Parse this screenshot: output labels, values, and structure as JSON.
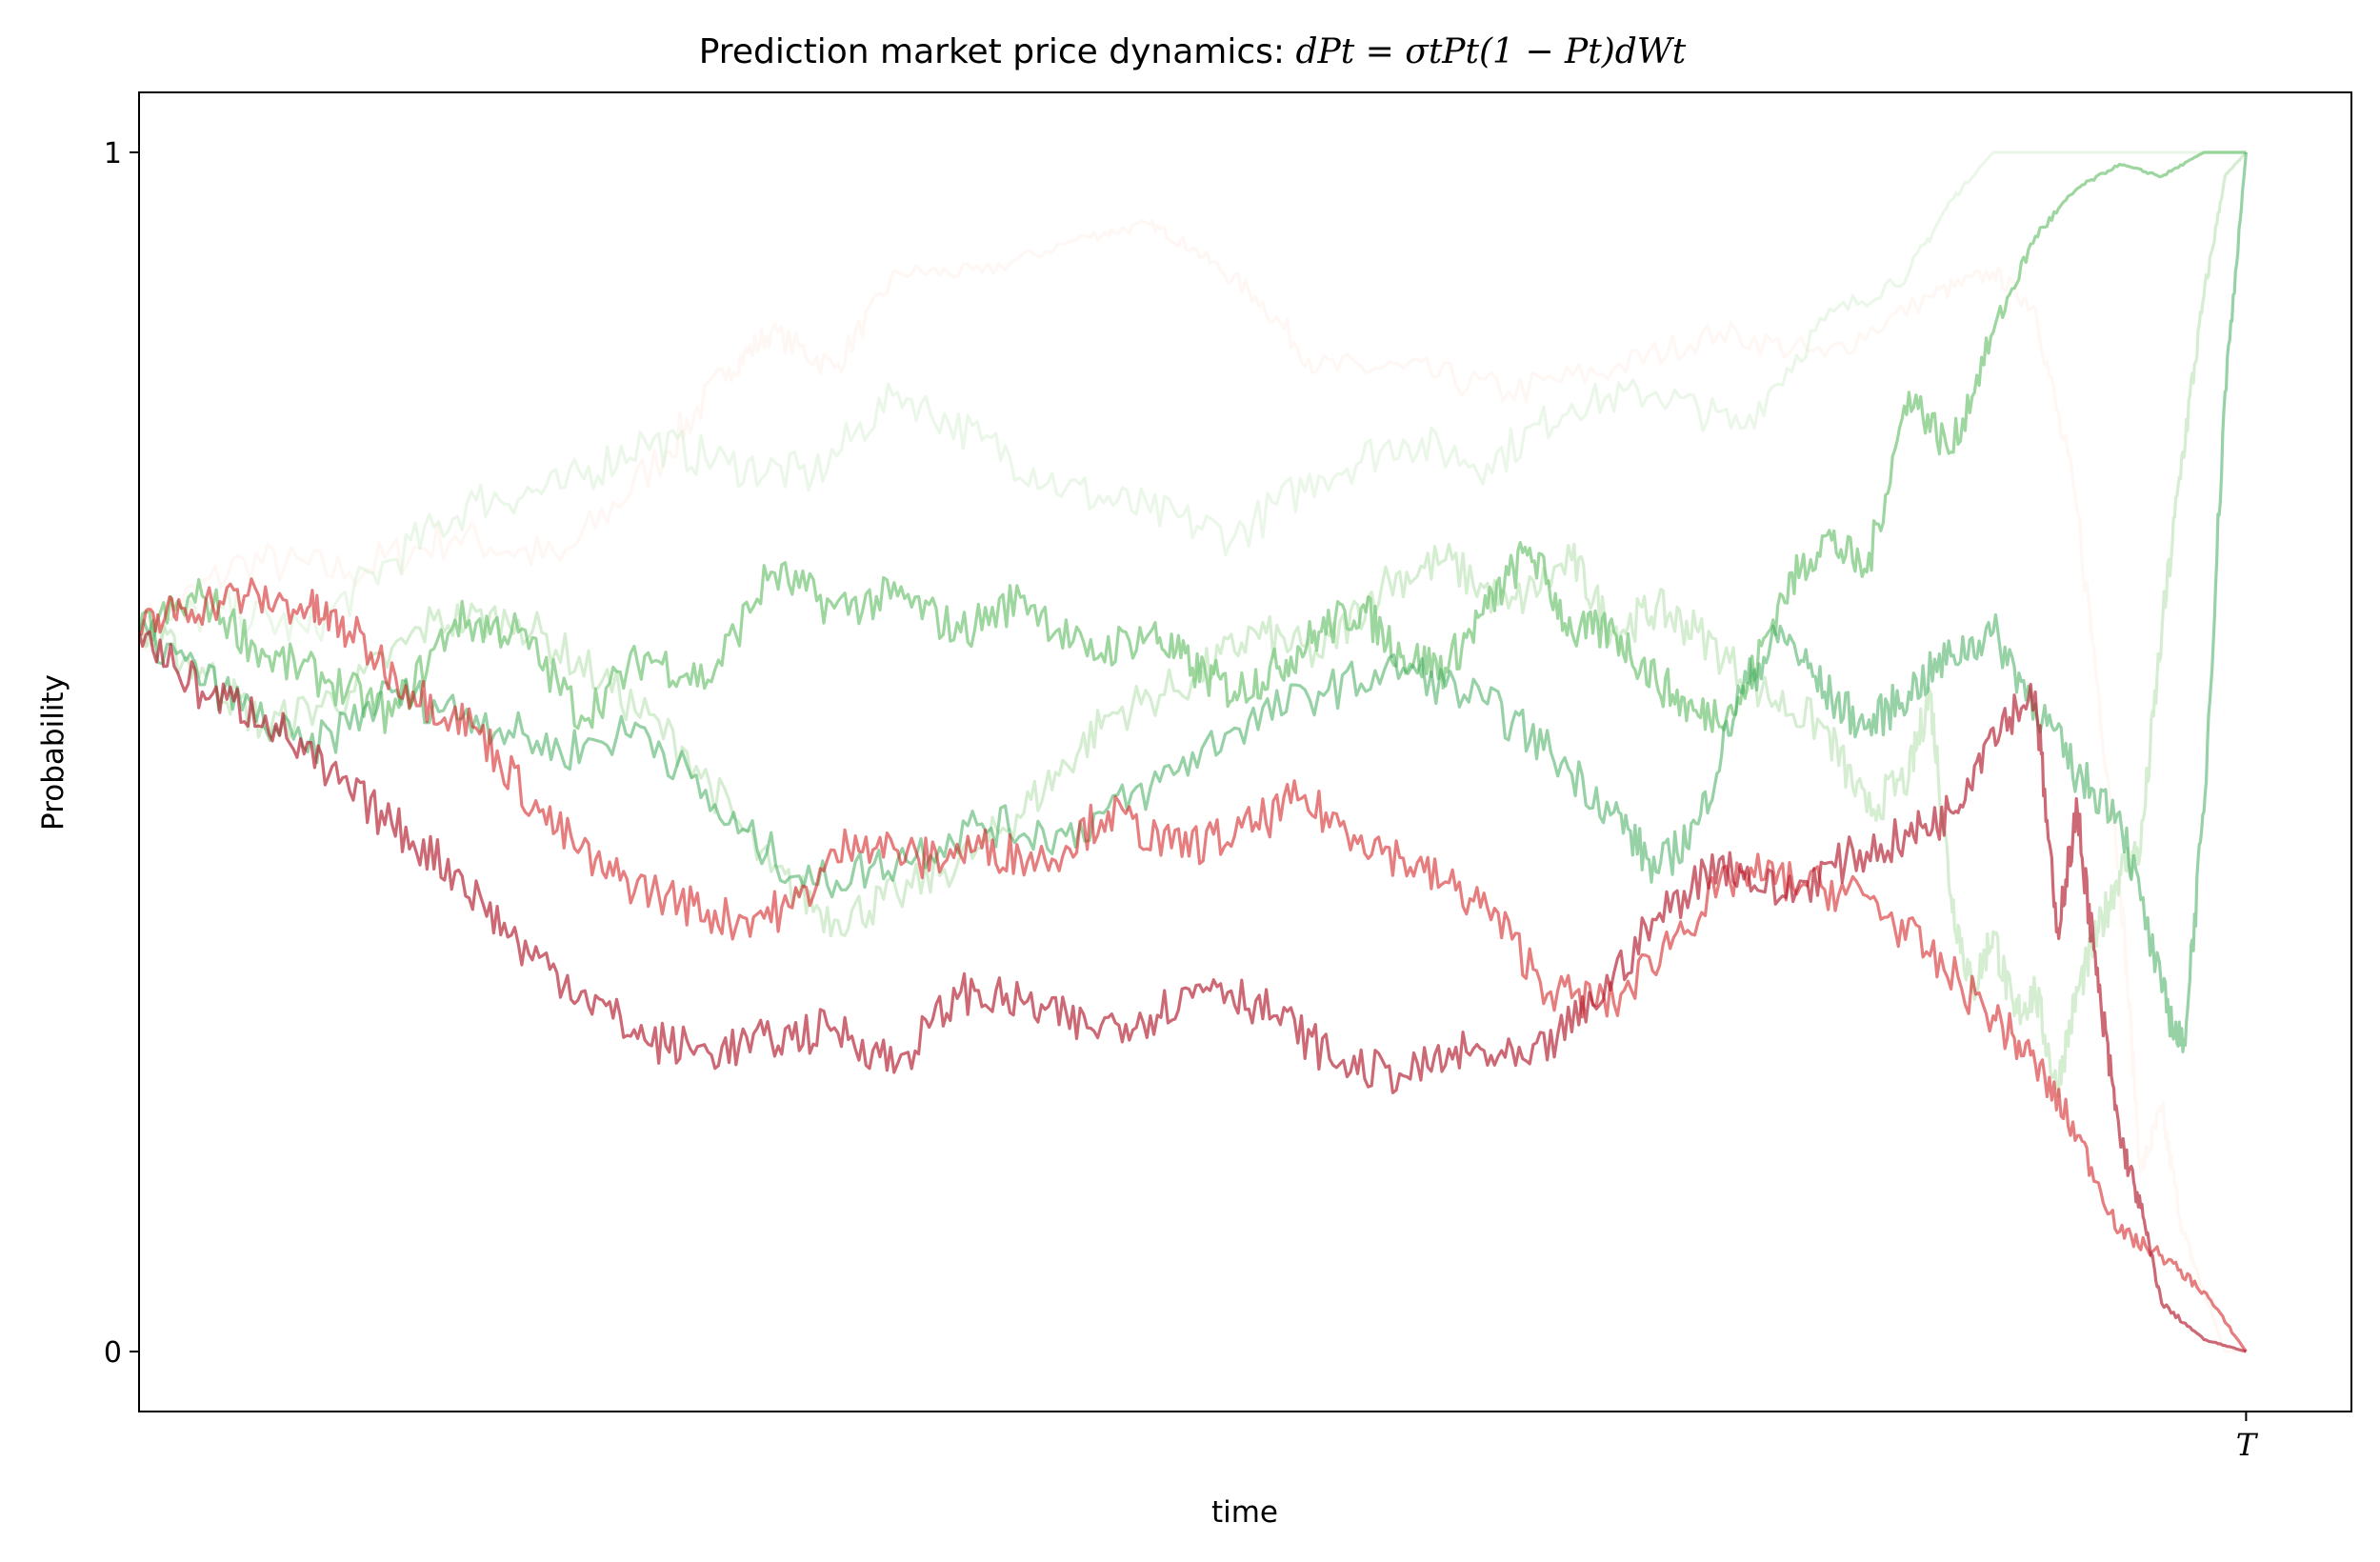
{
  "chart_data": {
    "type": "line",
    "title": {
      "prefix": "Prediction market price dynamics: ",
      "formula": "dPt = σtPt(1 − Pt)dWt"
    },
    "xlabel": "time",
    "ylabel": "Probability",
    "xlim": [
      0,
      1.05
    ],
    "ylim": [
      -0.05,
      1.05
    ],
    "x_ticks": [
      {
        "value": 1.0,
        "label": "T"
      }
    ],
    "y_ticks": [
      {
        "value": 0,
        "label": "0"
      },
      {
        "value": 1,
        "label": "1"
      }
    ],
    "grid": false,
    "legend": "none",
    "series": [
      {
        "color": "#fbe7dc",
        "opacity": 0.35,
        "points": [
          [
            0,
            0.6
          ],
          [
            0.05,
            0.66
          ],
          [
            0.1,
            0.65
          ],
          [
            0.15,
            0.68
          ],
          [
            0.2,
            0.66
          ],
          [
            0.25,
            0.75
          ],
          [
            0.28,
            0.82
          ],
          [
            0.3,
            0.85
          ],
          [
            0.33,
            0.82
          ],
          [
            0.36,
            0.9
          ],
          [
            0.4,
            0.9
          ],
          [
            0.45,
            0.93
          ],
          [
            0.48,
            0.94
          ],
          [
            0.5,
            0.92
          ],
          [
            0.53,
            0.88
          ],
          [
            0.56,
            0.82
          ],
          [
            0.6,
            0.82
          ],
          [
            0.65,
            0.8
          ],
          [
            0.7,
            0.82
          ],
          [
            0.75,
            0.85
          ],
          [
            0.8,
            0.83
          ],
          [
            0.85,
            0.88
          ],
          [
            0.88,
            0.9
          ],
          [
            0.9,
            0.87
          ],
          [
            0.92,
            0.7
          ],
          [
            0.94,
            0.4
          ],
          [
            0.95,
            0.15
          ],
          [
            0.96,
            0.2
          ],
          [
            0.97,
            0.1
          ],
          [
            0.98,
            0.05
          ],
          [
            0.99,
            0.0
          ],
          [
            1.0,
            0.0
          ]
        ]
      },
      {
        "color": "#c7e9c0",
        "opacity": 0.35,
        "points": [
          [
            0,
            0.6
          ],
          [
            0.04,
            0.62
          ],
          [
            0.08,
            0.6
          ],
          [
            0.12,
            0.66
          ],
          [
            0.16,
            0.71
          ],
          [
            0.2,
            0.72
          ],
          [
            0.24,
            0.76
          ],
          [
            0.28,
            0.74
          ],
          [
            0.32,
            0.73
          ],
          [
            0.36,
            0.8
          ],
          [
            0.4,
            0.76
          ],
          [
            0.44,
            0.72
          ],
          [
            0.48,
            0.7
          ],
          [
            0.52,
            0.68
          ],
          [
            0.56,
            0.73
          ],
          [
            0.6,
            0.76
          ],
          [
            0.64,
            0.74
          ],
          [
            0.68,
            0.79
          ],
          [
            0.72,
            0.8
          ],
          [
            0.76,
            0.77
          ],
          [
            0.8,
            0.86
          ],
          [
            0.84,
            0.9
          ],
          [
            0.86,
            0.96
          ],
          [
            0.88,
            1.0
          ],
          [
            1.0,
            1.0
          ]
        ]
      },
      {
        "color": "#a1d99b",
        "opacity": 0.45,
        "points": [
          [
            0,
            0.6
          ],
          [
            0.03,
            0.57
          ],
          [
            0.06,
            0.52
          ],
          [
            0.1,
            0.55
          ],
          [
            0.14,
            0.61
          ],
          [
            0.18,
            0.61
          ],
          [
            0.22,
            0.56
          ],
          [
            0.26,
            0.5
          ],
          [
            0.3,
            0.4
          ],
          [
            0.33,
            0.36
          ],
          [
            0.36,
            0.38
          ],
          [
            0.4,
            0.42
          ],
          [
            0.43,
            0.47
          ],
          [
            0.46,
            0.53
          ],
          [
            0.5,
            0.56
          ],
          [
            0.53,
            0.6
          ],
          [
            0.56,
            0.58
          ],
          [
            0.59,
            0.64
          ],
          [
            0.62,
            0.66
          ],
          [
            0.65,
            0.62
          ],
          [
            0.68,
            0.66
          ],
          [
            0.7,
            0.6
          ],
          [
            0.72,
            0.62
          ],
          [
            0.74,
            0.6
          ],
          [
            0.77,
            0.55
          ],
          [
            0.8,
            0.52
          ],
          [
            0.82,
            0.45
          ],
          [
            0.84,
            0.48
          ],
          [
            0.85,
            0.55
          ],
          [
            0.86,
            0.38
          ],
          [
            0.87,
            0.3
          ],
          [
            0.88,
            0.35
          ],
          [
            0.89,
            0.28
          ],
          [
            0.9,
            0.3
          ],
          [
            0.91,
            0.22
          ],
          [
            0.92,
            0.3
          ],
          [
            0.93,
            0.35
          ],
          [
            0.94,
            0.4
          ],
          [
            0.95,
            0.42
          ],
          [
            0.96,
            0.6
          ],
          [
            0.97,
            0.75
          ],
          [
            0.98,
            0.88
          ],
          [
            0.99,
            0.98
          ],
          [
            1.0,
            1.0
          ]
        ]
      },
      {
        "color": "#74c476",
        "opacity": 0.7,
        "points": [
          [
            0,
            0.6
          ],
          [
            0.03,
            0.63
          ],
          [
            0.06,
            0.58
          ],
          [
            0.09,
            0.56
          ],
          [
            0.12,
            0.53
          ],
          [
            0.15,
            0.61
          ],
          [
            0.18,
            0.6
          ],
          [
            0.21,
            0.53
          ],
          [
            0.24,
            0.58
          ],
          [
            0.27,
            0.56
          ],
          [
            0.3,
            0.65
          ],
          [
            0.33,
            0.62
          ],
          [
            0.36,
            0.63
          ],
          [
            0.39,
            0.6
          ],
          [
            0.42,
            0.63
          ],
          [
            0.45,
            0.58
          ],
          [
            0.48,
            0.6
          ],
          [
            0.5,
            0.57
          ],
          [
            0.52,
            0.55
          ],
          [
            0.54,
            0.57
          ],
          [
            0.56,
            0.6
          ],
          [
            0.58,
            0.62
          ],
          [
            0.6,
            0.58
          ],
          [
            0.62,
            0.57
          ],
          [
            0.64,
            0.62
          ],
          [
            0.66,
            0.67
          ],
          [
            0.68,
            0.6
          ],
          [
            0.7,
            0.6
          ],
          [
            0.72,
            0.56
          ],
          [
            0.74,
            0.53
          ],
          [
            0.76,
            0.54
          ],
          [
            0.78,
            0.63
          ],
          [
            0.8,
            0.68
          ],
          [
            0.82,
            0.65
          ],
          [
            0.84,
            0.8
          ],
          [
            0.86,
            0.75
          ],
          [
            0.88,
            0.85
          ],
          [
            0.9,
            0.93
          ],
          [
            0.92,
            0.97
          ],
          [
            0.94,
            0.99
          ],
          [
            0.96,
            0.98
          ],
          [
            0.98,
            1.0
          ],
          [
            1.0,
            1.0
          ]
        ]
      },
      {
        "color": "#41ab5d",
        "opacity": 0.55,
        "points": [
          [
            0,
            0.6
          ],
          [
            0.04,
            0.55
          ],
          [
            0.08,
            0.5
          ],
          [
            0.12,
            0.55
          ],
          [
            0.16,
            0.53
          ],
          [
            0.2,
            0.5
          ],
          [
            0.24,
            0.52
          ],
          [
            0.28,
            0.44
          ],
          [
            0.32,
            0.39
          ],
          [
            0.36,
            0.41
          ],
          [
            0.4,
            0.44
          ],
          [
            0.44,
            0.43
          ],
          [
            0.48,
            0.47
          ],
          [
            0.52,
            0.52
          ],
          [
            0.56,
            0.55
          ],
          [
            0.6,
            0.57
          ],
          [
            0.64,
            0.54
          ],
          [
            0.67,
            0.5
          ],
          [
            0.7,
            0.45
          ],
          [
            0.72,
            0.4
          ],
          [
            0.74,
            0.44
          ],
          [
            0.76,
            0.55
          ],
          [
            0.78,
            0.6
          ],
          [
            0.8,
            0.55
          ],
          [
            0.82,
            0.52
          ],
          [
            0.84,
            0.55
          ],
          [
            0.86,
            0.58
          ],
          [
            0.88,
            0.6
          ],
          [
            0.9,
            0.54
          ],
          [
            0.92,
            0.48
          ],
          [
            0.94,
            0.45
          ],
          [
            0.96,
            0.3
          ],
          [
            0.97,
            0.25
          ],
          [
            0.98,
            0.45
          ],
          [
            0.99,
            0.8
          ],
          [
            1.0,
            1.0
          ]
        ]
      },
      {
        "color": "#d62728",
        "opacity": 0.6,
        "points": [
          [
            0,
            0.6
          ],
          [
            0.02,
            0.62
          ],
          [
            0.05,
            0.63
          ],
          [
            0.08,
            0.62
          ],
          [
            0.1,
            0.6
          ],
          [
            0.13,
            0.55
          ],
          [
            0.16,
            0.52
          ],
          [
            0.19,
            0.45
          ],
          [
            0.22,
            0.4
          ],
          [
            0.25,
            0.38
          ],
          [
            0.28,
            0.36
          ],
          [
            0.31,
            0.37
          ],
          [
            0.34,
            0.43
          ],
          [
            0.37,
            0.41
          ],
          [
            0.4,
            0.42
          ],
          [
            0.43,
            0.41
          ],
          [
            0.46,
            0.45
          ],
          [
            0.49,
            0.42
          ],
          [
            0.52,
            0.43
          ],
          [
            0.55,
            0.46
          ],
          [
            0.58,
            0.43
          ],
          [
            0.61,
            0.4
          ],
          [
            0.64,
            0.37
          ],
          [
            0.67,
            0.3
          ],
          [
            0.7,
            0.29
          ],
          [
            0.73,
            0.35
          ],
          [
            0.76,
            0.4
          ],
          [
            0.79,
            0.39
          ],
          [
            0.82,
            0.38
          ],
          [
            0.85,
            0.33
          ],
          [
            0.88,
            0.28
          ],
          [
            0.9,
            0.24
          ],
          [
            0.92,
            0.18
          ],
          [
            0.94,
            0.1
          ],
          [
            0.96,
            0.08
          ],
          [
            0.98,
            0.05
          ],
          [
            1.0,
            0.0
          ]
        ]
      },
      {
        "color": "#b2182b",
        "opacity": 0.65,
        "points": [
          [
            0,
            0.6
          ],
          [
            0.03,
            0.55
          ],
          [
            0.06,
            0.53
          ],
          [
            0.09,
            0.48
          ],
          [
            0.12,
            0.44
          ],
          [
            0.15,
            0.4
          ],
          [
            0.18,
            0.34
          ],
          [
            0.21,
            0.3
          ],
          [
            0.24,
            0.26
          ],
          [
            0.27,
            0.25
          ],
          [
            0.3,
            0.26
          ],
          [
            0.33,
            0.27
          ],
          [
            0.36,
            0.24
          ],
          [
            0.39,
            0.3
          ],
          [
            0.42,
            0.29
          ],
          [
            0.45,
            0.27
          ],
          [
            0.48,
            0.28
          ],
          [
            0.51,
            0.31
          ],
          [
            0.54,
            0.28
          ],
          [
            0.57,
            0.24
          ],
          [
            0.6,
            0.23
          ],
          [
            0.63,
            0.25
          ],
          [
            0.66,
            0.24
          ],
          [
            0.69,
            0.29
          ],
          [
            0.72,
            0.36
          ],
          [
            0.75,
            0.41
          ],
          [
            0.78,
            0.38
          ],
          [
            0.81,
            0.41
          ],
          [
            0.84,
            0.43
          ],
          [
            0.86,
            0.45
          ],
          [
            0.88,
            0.52
          ],
          [
            0.9,
            0.55
          ],
          [
            0.91,
            0.35
          ],
          [
            0.92,
            0.45
          ],
          [
            0.93,
            0.3
          ],
          [
            0.94,
            0.18
          ],
          [
            0.95,
            0.12
          ],
          [
            0.96,
            0.04
          ],
          [
            0.98,
            0.01
          ],
          [
            1.0,
            0.0
          ]
        ]
      }
    ]
  }
}
